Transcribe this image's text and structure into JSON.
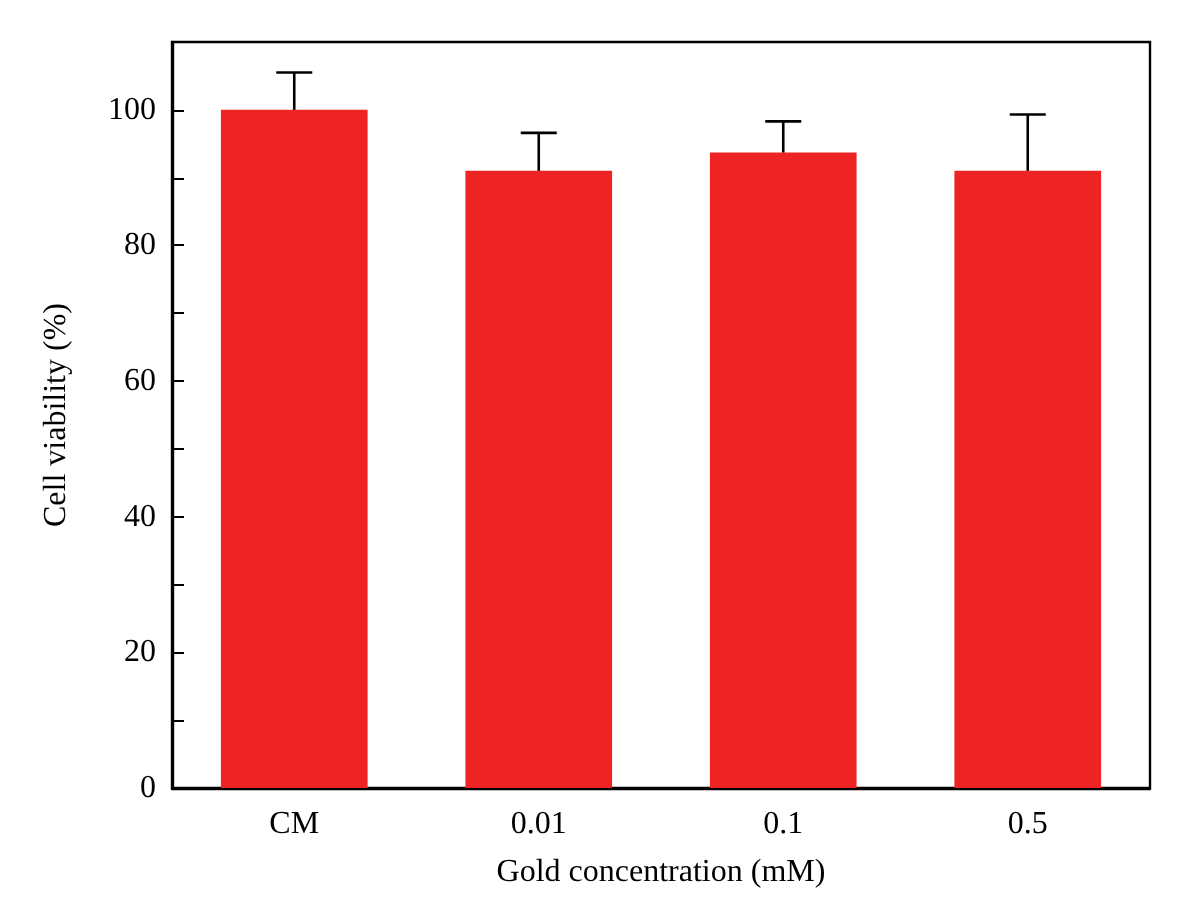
{
  "chart_data": {
    "type": "bar",
    "xlabel": "Gold concentration (mM)",
    "ylabel": "Cell viability (%)",
    "categories": [
      "CM",
      "0.01",
      "0.1",
      "0.5"
    ],
    "values": [
      100,
      91,
      93.7,
      91
    ],
    "errors": [
      [
        100,
        105.5
      ],
      [
        91,
        96.6
      ],
      [
        93.7,
        98.3
      ],
      [
        91,
        99.3
      ]
    ],
    "color": "#ee2424",
    "ylim": [
      0,
      110
    ],
    "yticks": [
      0,
      20,
      40,
      60,
      80,
      100
    ],
    "grid": false
  }
}
